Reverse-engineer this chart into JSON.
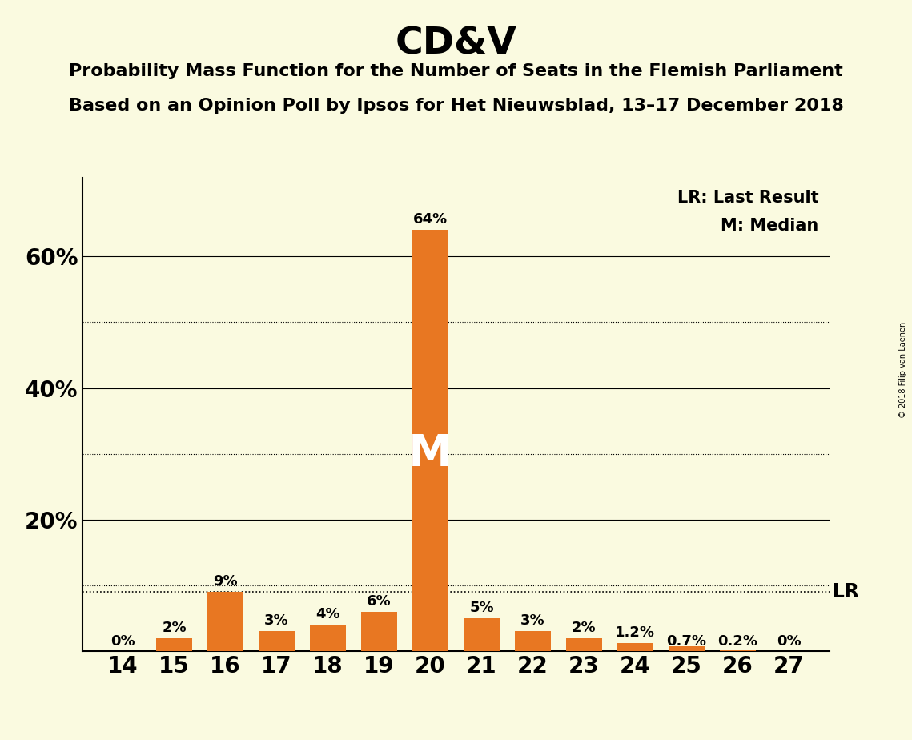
{
  "title": "CD&V",
  "subtitle_line1": "Probability Mass Function for the Number of Seats in the Flemish Parliament",
  "subtitle_line2": "Based on an Opinion Poll by Ipsos for Het Nieuwsblad, 13–17 December 2018",
  "copyright": "© 2018 Filip van Laenen",
  "seats": [
    14,
    15,
    16,
    17,
    18,
    19,
    20,
    21,
    22,
    23,
    24,
    25,
    26,
    27
  ],
  "probabilities": [
    0.0,
    0.02,
    0.09,
    0.03,
    0.04,
    0.06,
    0.64,
    0.05,
    0.03,
    0.02,
    0.012,
    0.007,
    0.002,
    0.0
  ],
  "bar_labels": [
    "0%",
    "2%",
    "9%",
    "3%",
    "4%",
    "6%",
    "64%",
    "5%",
    "3%",
    "2%",
    "1.2%",
    "0.7%",
    "0.2%",
    "0%"
  ],
  "bar_color": "#E87722",
  "background_color": "#FAFAE0",
  "median_seat": 20,
  "lr_value": 0.09,
  "yticks": [
    0.2,
    0.4,
    0.6
  ],
  "ytick_labels": [
    "20%",
    "40%",
    "60%"
  ],
  "ylim": [
    0,
    0.72
  ],
  "legend_lr": "LR: Last Result",
  "legend_m": "M: Median",
  "lr_label": "LR",
  "dotted_lines": [
    0.1,
    0.3,
    0.5
  ],
  "solid_lines": [
    0.2,
    0.4,
    0.6
  ]
}
